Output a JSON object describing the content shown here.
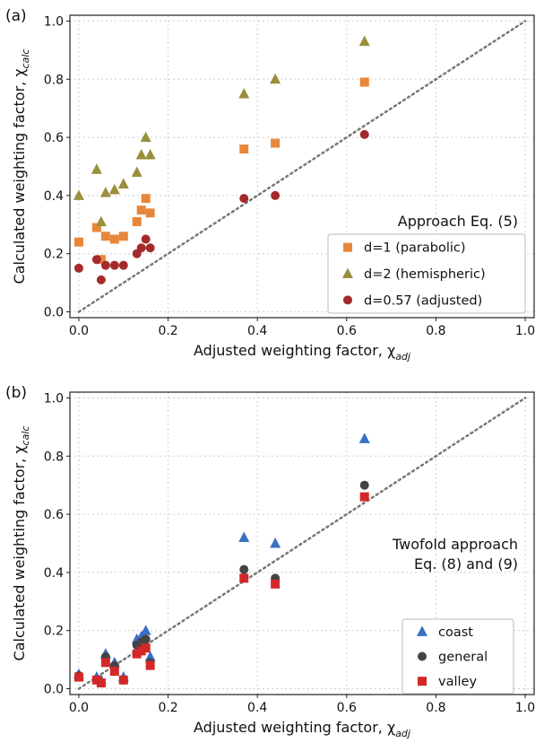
{
  "chart_data": [
    {
      "type": "scatter",
      "panel_label": "(a)",
      "xlabel": "Adjusted weighting factor, χ",
      "xlabel_sub": "adj",
      "ylabel": "Calculated weighting factor, χ",
      "ylabel_sub": "calc",
      "xlim": [
        0,
        1.0
      ],
      "ylim": [
        0,
        1.0
      ],
      "xticks": [
        "0.0",
        "0.2",
        "0.4",
        "0.6",
        "0.8",
        "1.0"
      ],
      "yticks": [
        "0.0",
        "0.2",
        "0.4",
        "0.6",
        "0.8",
        "1.0"
      ],
      "grid": true,
      "reference_line": "y = x (dotted grey)",
      "annotation": [
        "Approach Eq. (5)"
      ],
      "legend_position": "lower-right",
      "series": [
        {
          "name": "d=1 (parabolic)",
          "marker": "square",
          "color": "#e8873a",
          "x": [
            0.0,
            0.04,
            0.05,
            0.06,
            0.08,
            0.1,
            0.13,
            0.14,
            0.15,
            0.16,
            0.37,
            0.44,
            0.64
          ],
          "y": [
            0.24,
            0.29,
            0.18,
            0.26,
            0.25,
            0.26,
            0.31,
            0.35,
            0.39,
            0.34,
            0.56,
            0.58,
            0.79
          ]
        },
        {
          "name": "d=2 (hemispheric)",
          "marker": "triangle",
          "color": "#9a8f3a",
          "x": [
            0.0,
            0.04,
            0.05,
            0.06,
            0.08,
            0.1,
            0.13,
            0.14,
            0.15,
            0.16,
            0.37,
            0.44,
            0.64
          ],
          "y": [
            0.4,
            0.49,
            0.31,
            0.41,
            0.42,
            0.44,
            0.48,
            0.54,
            0.6,
            0.54,
            0.75,
            0.8,
            0.93
          ]
        },
        {
          "name": "d=0.57 (adjusted)",
          "marker": "circle",
          "color": "#a52a2a",
          "x": [
            0.0,
            0.04,
            0.05,
            0.06,
            0.08,
            0.1,
            0.13,
            0.14,
            0.15,
            0.16,
            0.37,
            0.44,
            0.64
          ],
          "y": [
            0.15,
            0.18,
            0.11,
            0.16,
            0.16,
            0.16,
            0.2,
            0.22,
            0.25,
            0.22,
            0.39,
            0.4,
            0.61
          ]
        }
      ]
    },
    {
      "type": "scatter",
      "panel_label": "(b)",
      "xlabel": "Adjusted weighting factor, χ",
      "xlabel_sub": "adj",
      "ylabel": "Calculated weighting factor, χ",
      "ylabel_sub": "calc",
      "xlim": [
        0,
        1.0
      ],
      "ylim": [
        0,
        1.0
      ],
      "xticks": [
        "0.0",
        "0.2",
        "0.4",
        "0.6",
        "0.8",
        "1.0"
      ],
      "yticks": [
        "0.0",
        "0.2",
        "0.4",
        "0.6",
        "0.8",
        "1.0"
      ],
      "grid": true,
      "reference_line": "y = x (dotted grey)",
      "annotation": [
        "Twofold approach",
        "Eq. (8) and (9)"
      ],
      "legend_position": "lower-right",
      "series": [
        {
          "name": "coast",
          "marker": "triangle",
          "color": "#3a6fc4",
          "x": [
            0.0,
            0.04,
            0.05,
            0.06,
            0.08,
            0.1,
            0.13,
            0.14,
            0.15,
            0.16,
            0.37,
            0.44,
            0.64
          ],
          "y": [
            0.05,
            0.04,
            0.03,
            0.12,
            0.09,
            0.04,
            0.17,
            0.18,
            0.2,
            0.11,
            0.52,
            0.5,
            0.86
          ]
        },
        {
          "name": "general",
          "marker": "circle",
          "color": "#444444",
          "x": [
            0.0,
            0.04,
            0.05,
            0.06,
            0.08,
            0.1,
            0.13,
            0.14,
            0.15,
            0.16,
            0.37,
            0.44,
            0.64
          ],
          "y": [
            0.045,
            0.03,
            0.02,
            0.11,
            0.08,
            0.03,
            0.15,
            0.16,
            0.17,
            0.09,
            0.41,
            0.38,
            0.7
          ]
        },
        {
          "name": "valley",
          "marker": "square",
          "color": "#d42828",
          "x": [
            0.0,
            0.04,
            0.05,
            0.06,
            0.08,
            0.1,
            0.13,
            0.14,
            0.15,
            0.16,
            0.37,
            0.44,
            0.64
          ],
          "y": [
            0.04,
            0.03,
            0.02,
            0.09,
            0.06,
            0.03,
            0.12,
            0.13,
            0.14,
            0.08,
            0.38,
            0.36,
            0.66
          ]
        }
      ]
    }
  ]
}
